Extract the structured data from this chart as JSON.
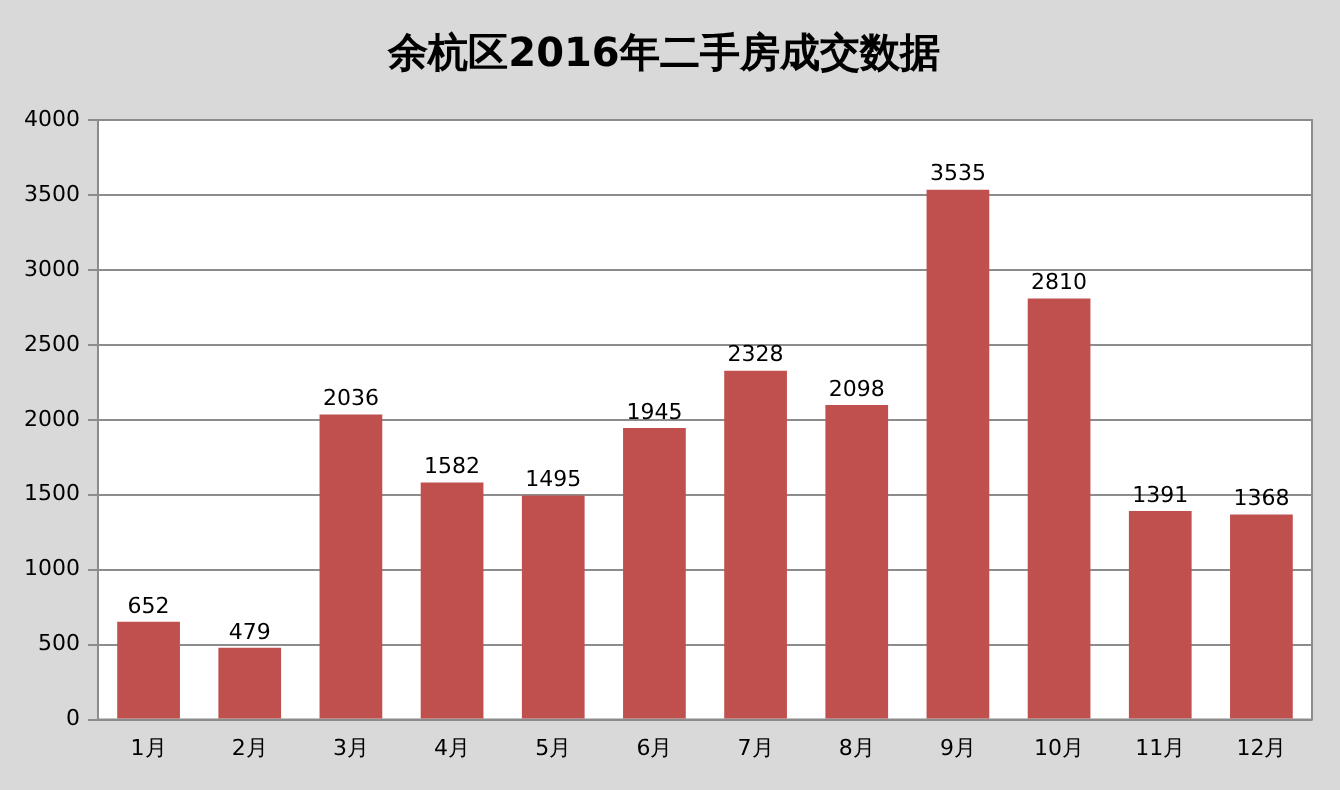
{
  "chart_data": {
    "type": "bar",
    "title": "余杭区2016年二手房成交数据",
    "categories": [
      "1月",
      "2月",
      "3月",
      "4月",
      "5月",
      "6月",
      "7月",
      "8月",
      "9月",
      "10月",
      "11月",
      "12月"
    ],
    "values": [
      652,
      479,
      2036,
      1582,
      1495,
      1945,
      2328,
      2098,
      3535,
      2810,
      1391,
      1368
    ],
    "color": "#c0504d",
    "ylim": [
      0,
      4000
    ],
    "yticks": [
      0,
      500,
      1000,
      1500,
      2000,
      2500,
      3000,
      3500,
      4000
    ],
    "grid": "y",
    "data_labels": true
  }
}
